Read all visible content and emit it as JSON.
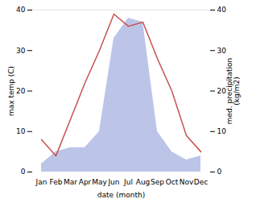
{
  "chart_data": {
    "type": "line",
    "xlabel": "date (month)",
    "ylabel": "max temp (C)",
    "y2label": "med. precipitation\n(kg/m2)",
    "categories": [
      "Jan",
      "Feb",
      "Mar",
      "Apr",
      "May",
      "Jun",
      "Jul",
      "Aug",
      "Sep",
      "Oct",
      "Nov",
      "Dec"
    ],
    "series": [
      {
        "type": "area",
        "axis": "y2",
        "color": "#bcc5e8",
        "values": [
          2,
          5,
          6,
          6,
          10,
          33,
          38,
          37,
          10,
          5,
          3,
          4
        ]
      },
      {
        "type": "line",
        "color": "#c85050",
        "values": [
          8,
          4,
          13,
          22,
          30,
          39,
          36,
          37,
          28,
          20,
          9,
          5
        ]
      }
    ],
    "ylim": [
      0,
      40
    ],
    "yticks": [
      0,
      10,
      20,
      30,
      40
    ],
    "y2lim": [
      0,
      40
    ],
    "y2ticks": [
      0,
      10,
      20,
      30,
      40
    ],
    "grid": false
  }
}
